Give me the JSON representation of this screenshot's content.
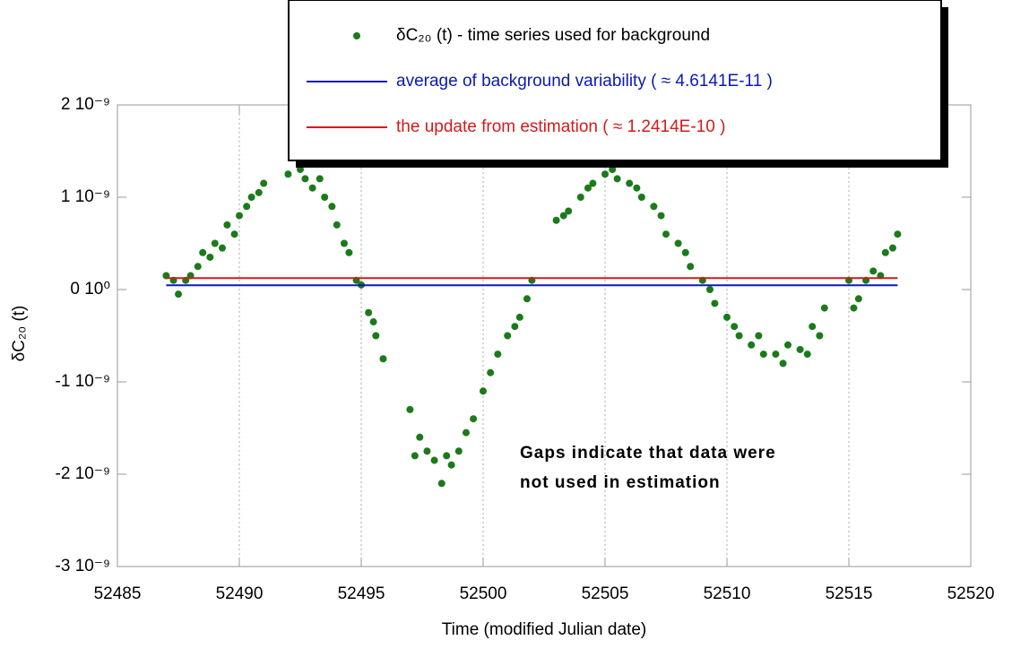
{
  "chart_data": {
    "type": "scatter",
    "x_label": "Time (modified Julian date)",
    "y_label": "δC₂₀ (t)",
    "annotation": [
      "Gaps indicate that data were",
      "not used in estimation"
    ],
    "xlim": [
      52485,
      52520
    ],
    "xticks": [
      52485,
      52490,
      52495,
      52500,
      52505,
      52510,
      52515,
      52520
    ],
    "ylim": [
      -3e-09,
      2e-09
    ],
    "yticks": [
      {
        "value": -3e-09,
        "label": "-3 10⁻⁹"
      },
      {
        "value": -2e-09,
        "label": "-2 10⁻⁹"
      },
      {
        "value": -1e-09,
        "label": "-1 10⁻⁹"
      },
      {
        "value": 0,
        "label": "0 10⁰"
      },
      {
        "value": 1e-09,
        "label": "1 10⁻⁹"
      },
      {
        "value": 2e-09,
        "label": "2 10⁻⁹"
      }
    ],
    "grid": true,
    "series": [
      {
        "name": "δC₂₀ (t) - time series used for background",
        "kind": "points",
        "color": "#1b7a1b",
        "x": [
          52487,
          52487.3,
          52487.5,
          52487.8,
          52488,
          52488.3,
          52488.5,
          52488.8,
          52489,
          52489.3,
          52489.5,
          52489.8,
          52490,
          52490.3,
          52490.5,
          52490.8,
          52491,
          52492,
          52492.3,
          52492.5,
          52492.7,
          52493,
          52493.3,
          52493.5,
          52493.8,
          52494,
          52494.3,
          52494.5,
          52494.8,
          52495,
          52495.3,
          52495.5,
          52495.6,
          52495.9,
          52497,
          52497.2,
          52497.4,
          52497.7,
          52498,
          52498.3,
          52498.5,
          52498.7,
          52499,
          52499.3,
          52499.6,
          52500,
          52500.3,
          52500.6,
          52501,
          52501.3,
          52501.5,
          52501.8,
          52502,
          52503,
          52503.3,
          52503.5,
          52504,
          52504.3,
          52504.5,
          52505,
          52505.3,
          52505.5,
          52506,
          52506.3,
          52506.5,
          52507,
          52507.3,
          52507.5,
          52508,
          52508.3,
          52508.5,
          52509,
          52509.3,
          52509.5,
          52510,
          52510.3,
          52510.5,
          52511,
          52511.3,
          52511.5,
          52512,
          52512.3,
          52512.5,
          52513,
          52513.3,
          52513.5,
          52513.8,
          52514,
          52515,
          52515.2,
          52515.4,
          52515.7,
          52516,
          52516.3,
          52516.5,
          52516.8,
          52517
        ],
        "values": [
          1.5e-10,
          1e-10,
          -5e-11,
          1e-10,
          1.5e-10,
          2.5e-10,
          4e-10,
          3.5e-10,
          5e-10,
          4.5e-10,
          7e-10,
          6e-10,
          8e-10,
          9e-10,
          1e-09,
          1.05e-09,
          1.15e-09,
          1.25e-09,
          1.45e-09,
          1.3e-09,
          1.2e-09,
          1.1e-09,
          1.2e-09,
          1e-09,
          9e-10,
          7e-10,
          5e-10,
          4e-10,
          1e-10,
          5e-11,
          -2.5e-10,
          -3.5e-10,
          -5e-10,
          -7.5e-10,
          -1.3e-09,
          -1.8e-09,
          -1.6e-09,
          -1.75e-09,
          -1.85e-09,
          -2.1e-09,
          -1.8e-09,
          -1.9e-09,
          -1.75e-09,
          -1.55e-09,
          -1.4e-09,
          -1.1e-09,
          -9e-10,
          -7e-10,
          -5e-10,
          -4e-10,
          -3e-10,
          -1e-10,
          1e-10,
          7.5e-10,
          8e-10,
          8.5e-10,
          1e-09,
          1.1e-09,
          1.15e-09,
          1.25e-09,
          1.3e-09,
          1.2e-09,
          1.15e-09,
          1.1e-09,
          1e-09,
          9e-10,
          8e-10,
          6e-10,
          5e-10,
          4e-10,
          2.5e-10,
          1e-10,
          0,
          -1.5e-10,
          -3e-10,
          -4e-10,
          -5e-10,
          -6e-10,
          -5e-10,
          -7e-10,
          -7e-10,
          -8e-10,
          -6e-10,
          -6.5e-10,
          -7e-10,
          -4e-10,
          -5e-10,
          -2e-10,
          1e-10,
          -2e-10,
          -1e-10,
          1e-10,
          2e-10,
          1.5e-10,
          4e-10,
          4.5e-10,
          6e-10
        ]
      },
      {
        "name": "average of background variability ( ≈ 4.6141E-11 )",
        "kind": "line",
        "color": "#0a1ab4",
        "x": [
          52487,
          52517
        ],
        "values": [
          4.6141e-11,
          4.6141e-11
        ]
      },
      {
        "name": "the update from estimation ( ≈ 1.2414E-10 )",
        "kind": "line",
        "color": "#d41a1a",
        "x": [
          52487,
          52517
        ],
        "values": [
          1.2414e-10,
          1.2414e-10
        ]
      }
    ]
  }
}
